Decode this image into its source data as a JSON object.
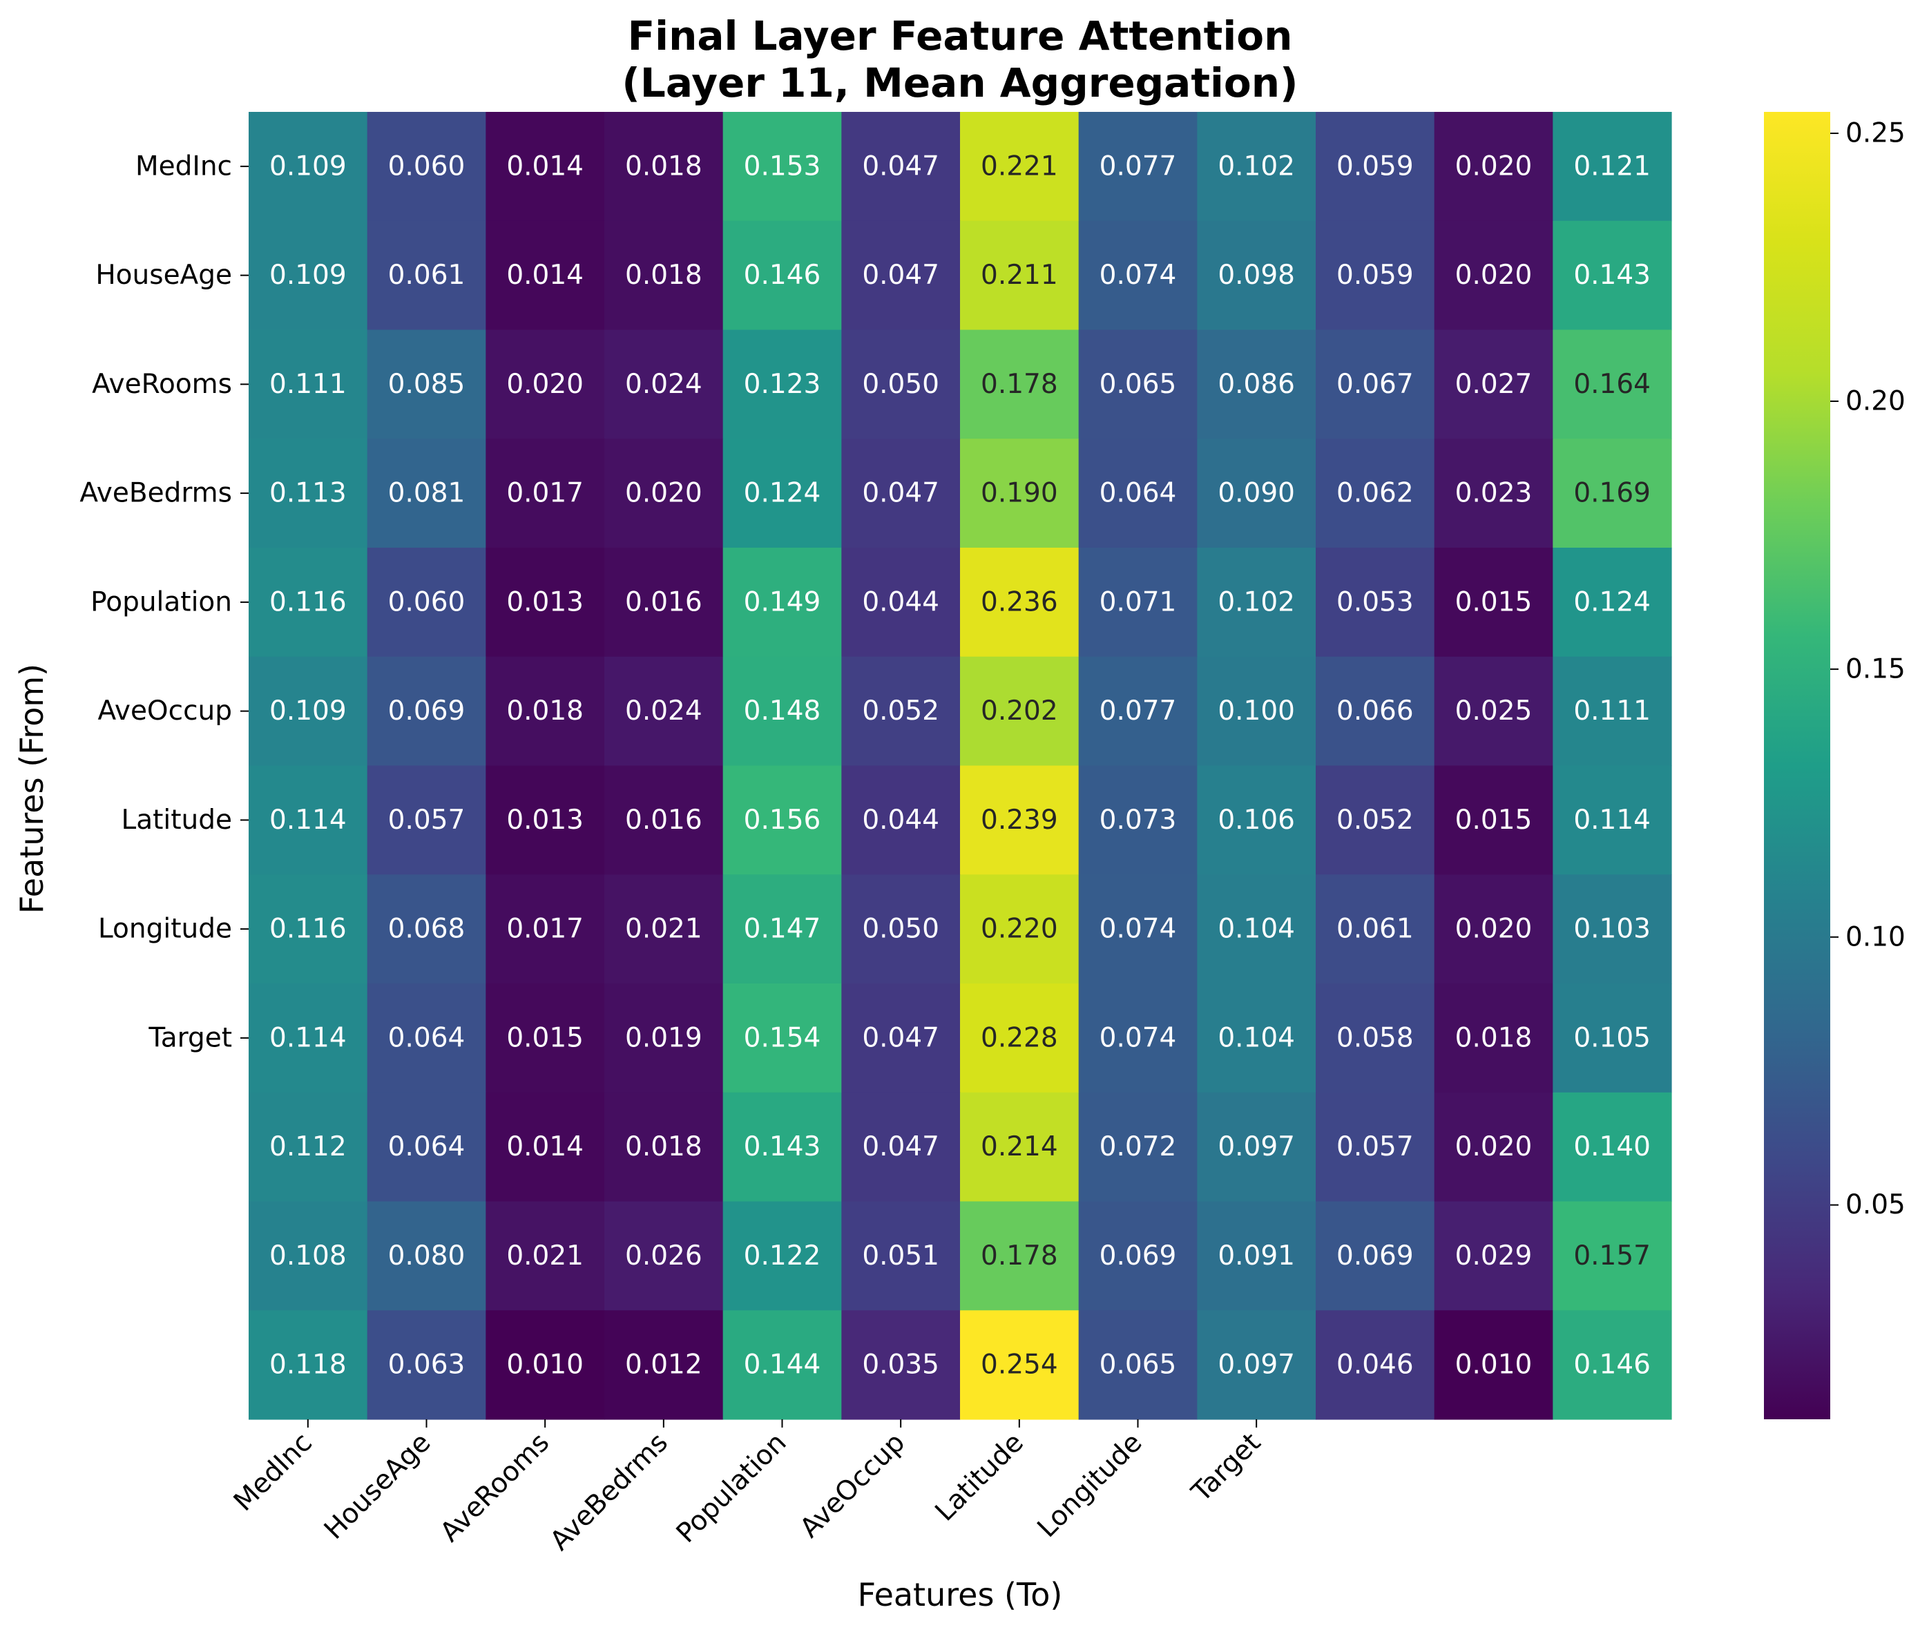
{
  "chart_data": {
    "type": "heatmap",
    "title": "Final Layer Feature Attention",
    "subtitle": "(Layer 11, Mean Aggregation)",
    "xlabel": "Features (To)",
    "ylabel": "Features (From)",
    "row_labels": [
      "MedInc",
      "HouseAge",
      "AveRooms",
      "AveBedrms",
      "Population",
      "AveOccup",
      "Latitude",
      "Longitude",
      "Target",
      "",
      "",
      ""
    ],
    "col_labels": [
      "MedInc",
      "HouseAge",
      "AveRooms",
      "AveBedrms",
      "Population",
      "AveOccup",
      "Latitude",
      "Longitude",
      "Target",
      "",
      "",
      ""
    ],
    "values": [
      [
        0.109,
        0.06,
        0.014,
        0.018,
        0.153,
        0.047,
        0.221,
        0.077,
        0.102,
        0.059,
        0.02,
        0.121
      ],
      [
        0.109,
        0.061,
        0.014,
        0.018,
        0.146,
        0.047,
        0.211,
        0.074,
        0.098,
        0.059,
        0.02,
        0.143
      ],
      [
        0.111,
        0.085,
        0.02,
        0.024,
        0.123,
        0.05,
        0.178,
        0.065,
        0.086,
        0.067,
        0.027,
        0.164
      ],
      [
        0.113,
        0.081,
        0.017,
        0.02,
        0.124,
        0.047,
        0.19,
        0.064,
        0.09,
        0.062,
        0.023,
        0.169
      ],
      [
        0.116,
        0.06,
        0.013,
        0.016,
        0.149,
        0.044,
        0.236,
        0.071,
        0.102,
        0.053,
        0.015,
        0.124
      ],
      [
        0.109,
        0.069,
        0.018,
        0.024,
        0.148,
        0.052,
        0.202,
        0.077,
        0.1,
        0.066,
        0.025,
        0.111
      ],
      [
        0.114,
        0.057,
        0.013,
        0.016,
        0.156,
        0.044,
        0.239,
        0.073,
        0.106,
        0.052,
        0.015,
        0.114
      ],
      [
        0.116,
        0.068,
        0.017,
        0.021,
        0.147,
        0.05,
        0.22,
        0.074,
        0.104,
        0.061,
        0.02,
        0.103
      ],
      [
        0.114,
        0.064,
        0.015,
        0.019,
        0.154,
        0.047,
        0.228,
        0.074,
        0.104,
        0.058,
        0.018,
        0.105
      ],
      [
        0.112,
        0.064,
        0.014,
        0.018,
        0.143,
        0.047,
        0.214,
        0.072,
        0.097,
        0.057,
        0.02,
        0.14
      ],
      [
        0.108,
        0.08,
        0.021,
        0.026,
        0.122,
        0.051,
        0.178,
        0.069,
        0.091,
        0.069,
        0.029,
        0.157
      ],
      [
        0.118,
        0.063,
        0.01,
        0.012,
        0.144,
        0.035,
        0.254,
        0.065,
        0.097,
        0.046,
        0.01,
        0.146
      ]
    ],
    "value_format": "0.000",
    "colormap": "viridis",
    "vmin": 0.01,
    "vmax": 0.254,
    "colorbar_ticks": [
      "0.05",
      "0.10",
      "0.15",
      "0.20",
      "0.25"
    ],
    "colorbar_tick_values": [
      0.05,
      0.1,
      0.15,
      0.2,
      0.25
    ],
    "annotation_text_colors": {
      "dark_cell": "#ffffff",
      "light_cell": "#262626"
    }
  }
}
